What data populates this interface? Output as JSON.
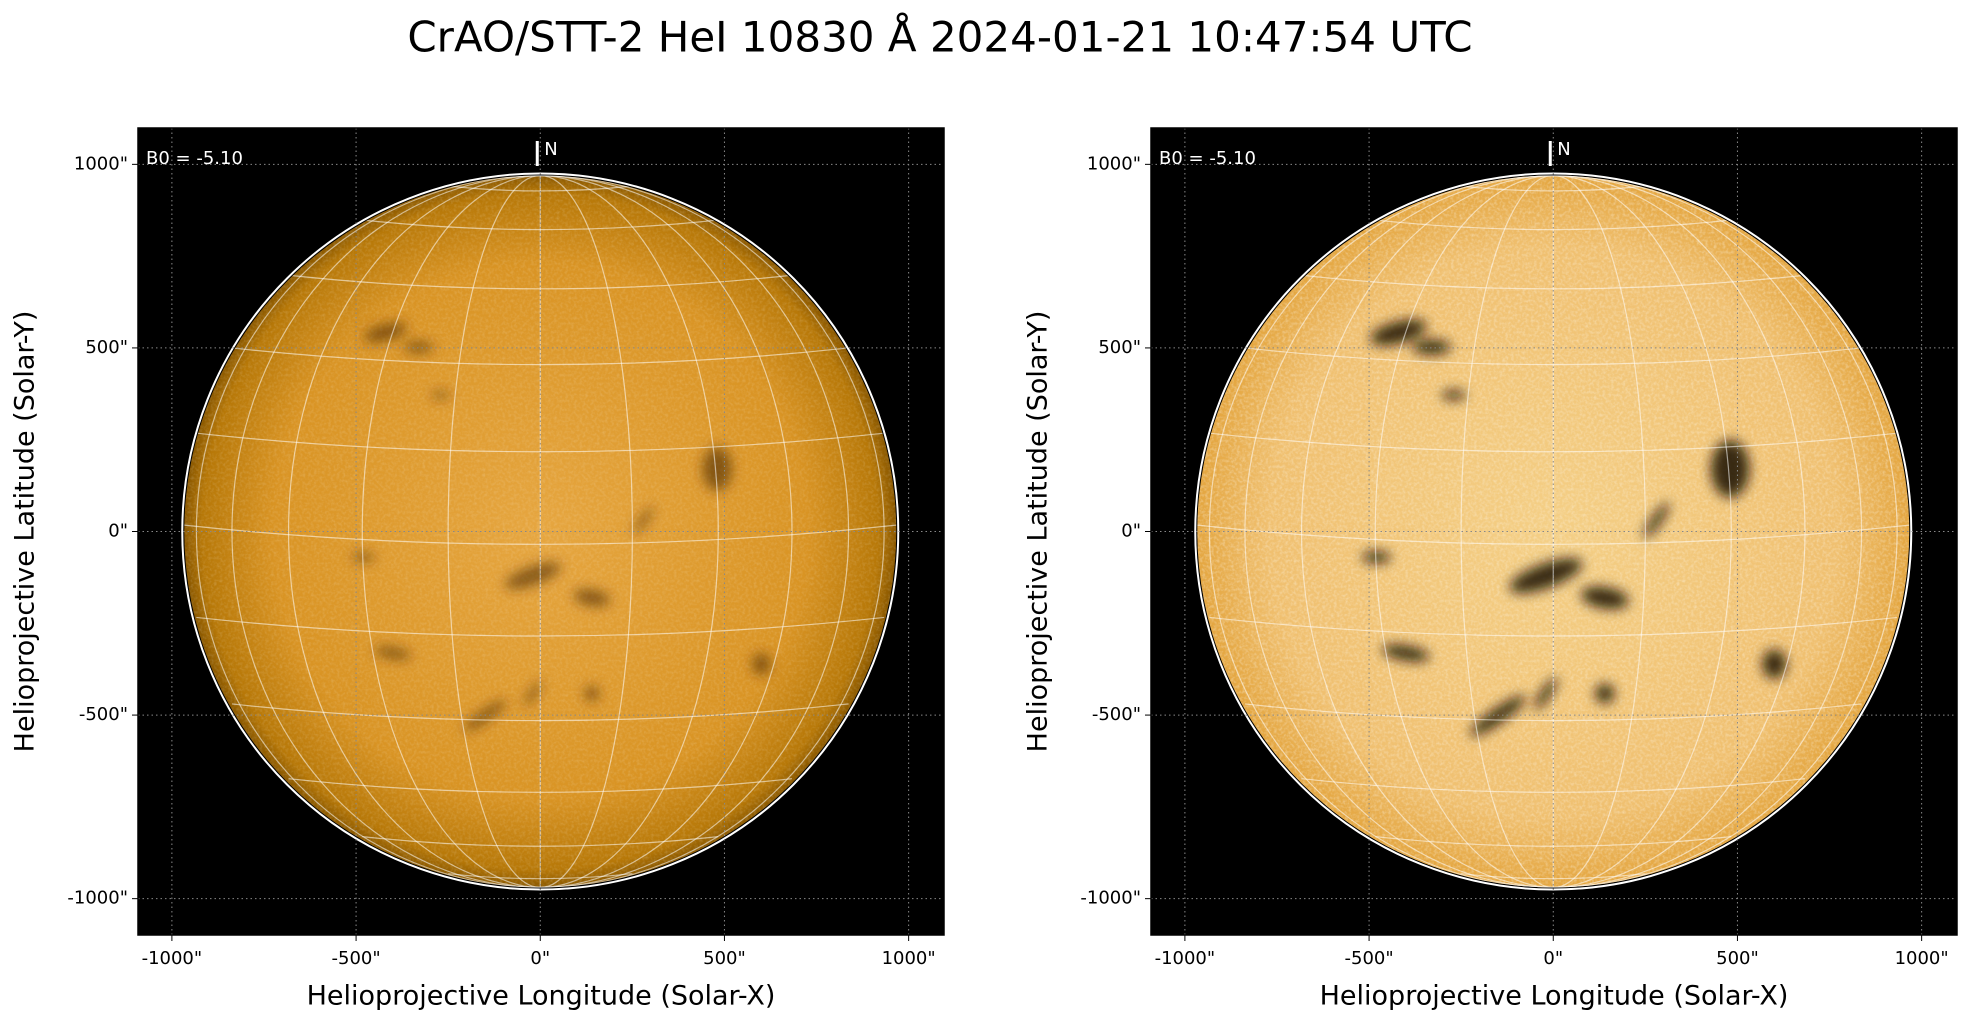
{
  "title": "CrAO/STT-2 HeI 10830 Å 2024-01-21 10:47:54 UTC",
  "chart_data": [
    {
      "type": "image",
      "xlabel": "Helioprojective Longitude (Solar-X)",
      "ylabel": "Helioprojective Latitude (Solar-Y)",
      "annotations": [
        "B0 = -5.10",
        "N"
      ],
      "xlim": [
        -1092,
        1096
      ],
      "ylim": [
        -1099,
        1099
      ],
      "xticks": [
        {
          "value": -1000,
          "label": "-1000\""
        },
        {
          "value": -500,
          "label": "-500\""
        },
        {
          "value": 0,
          "label": "0\""
        },
        {
          "value": 500,
          "label": "500\""
        },
        {
          "value": 1000,
          "label": "1000\""
        }
      ],
      "yticks": [
        {
          "value": -1000,
          "label": "-1000\""
        },
        {
          "value": -500,
          "label": "-500\""
        },
        {
          "value": 0,
          "label": "0\""
        },
        {
          "value": 500,
          "label": "500\""
        },
        {
          "value": 1000,
          "label": "1000\""
        }
      ],
      "grid": true,
      "contrast": "normal"
    },
    {
      "type": "image",
      "xlabel": "Helioprojective Longitude (Solar-X)",
      "ylabel": "Helioprojective Latitude (Solar-Y)",
      "annotations": [
        "B0 = -5.10",
        "N"
      ],
      "xlim": [
        -1092,
        1096
      ],
      "ylim": [
        -1099,
        1099
      ],
      "xticks": [
        {
          "value": -1000,
          "label": "-1000\""
        },
        {
          "value": -500,
          "label": "-500\""
        },
        {
          "value": 0,
          "label": "0\""
        },
        {
          "value": 500,
          "label": "500\""
        },
        {
          "value": 1000,
          "label": "1000\""
        }
      ],
      "yticks": [
        {
          "value": -1000,
          "label": "-1000\""
        },
        {
          "value": -500,
          "label": "-500\""
        },
        {
          "value": 0,
          "label": "0\""
        },
        {
          "value": 500,
          "label": "500\""
        },
        {
          "value": 1000,
          "label": "1000\""
        }
      ],
      "grid": true,
      "contrast": "high"
    }
  ]
}
